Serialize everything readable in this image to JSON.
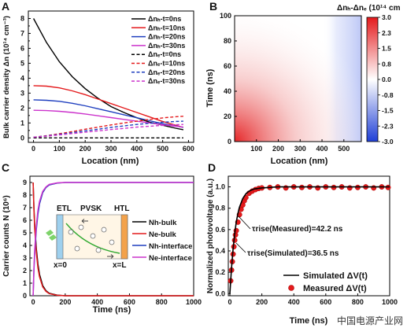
{
  "watermark": "中国电源产业网",
  "panels": {
    "A": {
      "letter": "A",
      "ylabel": "Bulk carrier density Δn (10¹⁴ cm⁻³)",
      "xlabel": "Location (nm)",
      "xticks": [
        0,
        100,
        200,
        300,
        400,
        500,
        600
      ],
      "yticks": [
        0,
        0.5,
        1,
        1.5,
        2,
        2.5,
        3,
        3.5,
        4,
        4.5,
        5,
        5.5,
        6,
        6.5,
        7,
        7.5,
        8
      ],
      "legend": [
        "Δnₕ-t=0ns",
        "Δnₕ-t=10ns",
        "Δnₕ-t=20ns",
        "Δnₕ-t=30ns",
        "Δnₑ-t=0ns",
        "Δnₑ-t=10ns",
        "Δnₑ-t=20ns",
        "Δnₑ-t=30ns"
      ]
    },
    "B": {
      "letter": "B",
      "ylabel": "Time (ns)",
      "xlabel": "Location (nm)",
      "xticks": [
        100,
        200,
        300,
        400,
        500
      ],
      "yticks": [
        0,
        20,
        40,
        60,
        80,
        100
      ],
      "colorbar_title": "Δnₕ-Δnₑ (10¹⁴ cm",
      "colorbar_ticks": [
        "3.0",
        "2.3",
        "1.5",
        "0.8",
        "0.0",
        "-0.8",
        "-1.5",
        "-2.3",
        "-3.0"
      ]
    },
    "C": {
      "letter": "C",
      "ylabel": "Carrier counts N (10⁶)",
      "xlabel": "Time (ns)",
      "xticks": [
        0,
        200,
        400,
        600,
        800,
        1000
      ],
      "yticks": [
        0,
        1,
        2,
        3,
        4,
        5,
        6,
        7,
        8,
        9
      ],
      "legend": [
        "Nh-bulk",
        "Ne-bulk",
        "Nh-interface",
        "Ne-interface"
      ],
      "inset": {
        "etl": "ETL",
        "pvsk": "PVSK",
        "htl": "HTL",
        "x0": "x=0",
        "xl": "x=L"
      }
    },
    "D": {
      "letter": "D",
      "ylabel": "Normalized photovoltage (a.u.)",
      "xlabel": "Time (ns)",
      "xticks": [
        0,
        200,
        400,
        600,
        800,
        1000
      ],
      "yticks": [
        "0.0",
        "0.2",
        "0.4",
        "0.6",
        "0.8",
        "1.0"
      ],
      "annotation_measured": "τrise(Measured)=42.2 ns",
      "annotation_simulated": "τrise(Simulated)=36.5 ns",
      "legend": [
        "Simulated ΔV(t)",
        "Measured ΔV(t)"
      ]
    }
  },
  "chart_data": [
    {
      "panel": "A",
      "type": "line",
      "xlabel": "Location (nm)",
      "ylabel": "Bulk carrier density Δn (10¹⁴ cm⁻³)",
      "xlim": [
        0,
        600
      ],
      "ylim": [
        0,
        8.5
      ],
      "x": [
        0,
        50,
        100,
        150,
        200,
        250,
        300,
        350,
        400,
        450,
        500,
        550,
        580
      ],
      "series": [
        {
          "name": "Δnₕ-t=0ns",
          "color": "#000000",
          "dash": false,
          "values": [
            8.0,
            6.4,
            5.1,
            4.1,
            3.3,
            2.65,
            2.1,
            1.7,
            1.35,
            1.05,
            0.85,
            0.65,
            0.55
          ]
        },
        {
          "name": "Δnₕ-t=10ns",
          "color": "#e41a1c",
          "dash": false,
          "values": [
            3.5,
            3.47,
            3.35,
            3.15,
            2.9,
            2.6,
            2.3,
            2.0,
            1.7,
            1.4,
            1.1,
            0.85,
            0.7
          ]
        },
        {
          "name": "Δnₕ-t=20ns",
          "color": "#1f3fbf",
          "dash": false,
          "values": [
            2.55,
            2.52,
            2.45,
            2.32,
            2.15,
            1.95,
            1.75,
            1.55,
            1.35,
            1.15,
            0.95,
            0.8,
            0.7
          ]
        },
        {
          "name": "Δnₕ-t=30ns",
          "color": "#cc33cc",
          "dash": false,
          "values": [
            1.85,
            1.83,
            1.78,
            1.7,
            1.6,
            1.48,
            1.36,
            1.24,
            1.12,
            1.0,
            0.88,
            0.78,
            0.72
          ]
        },
        {
          "name": "Δnₑ-t=0ns",
          "color": "#000000",
          "dash": true,
          "values": [
            0.0,
            0.0,
            0.0,
            0.0,
            0.0,
            0.0,
            0.0,
            0.0,
            0.0,
            0.0,
            0.0,
            0.0,
            0.0
          ]
        },
        {
          "name": "Δnₑ-t=10ns",
          "color": "#e41a1c",
          "dash": true,
          "values": [
            0.05,
            0.15,
            0.28,
            0.42,
            0.58,
            0.72,
            0.87,
            1.0,
            1.12,
            1.24,
            1.34,
            1.42,
            1.45
          ]
        },
        {
          "name": "Δnₑ-t=20ns",
          "color": "#1f3fbf",
          "dash": true,
          "values": [
            0.05,
            0.13,
            0.24,
            0.35,
            0.47,
            0.58,
            0.7,
            0.8,
            0.9,
            0.98,
            1.05,
            1.1,
            1.12
          ]
        },
        {
          "name": "Δnₑ-t=30ns",
          "color": "#cc33cc",
          "dash": true,
          "values": [
            0.05,
            0.11,
            0.2,
            0.29,
            0.38,
            0.47,
            0.56,
            0.64,
            0.72,
            0.78,
            0.84,
            0.88,
            0.9
          ]
        }
      ]
    },
    {
      "panel": "B",
      "type": "heatmap",
      "xlabel": "Location (nm)",
      "ylabel": "Time (ns)",
      "xlim": [
        0,
        580
      ],
      "ylim": [
        0,
        100
      ],
      "colorbar_range": [
        -3.0,
        3.0
      ],
      "x": [
        0,
        100,
        200,
        300,
        400,
        500,
        580
      ],
      "y": [
        0,
        10,
        20,
        40,
        60,
        80,
        100
      ],
      "values": [
        [
          3.0,
          2.4,
          1.6,
          0.9,
          0.4,
          -0.2,
          -0.6
        ],
        [
          2.0,
          1.7,
          1.2,
          0.7,
          0.3,
          -0.2,
          -0.5
        ],
        [
          1.5,
          1.3,
          0.95,
          0.55,
          0.2,
          -0.2,
          -0.45
        ],
        [
          1.0,
          0.85,
          0.6,
          0.35,
          0.1,
          -0.2,
          -0.4
        ],
        [
          0.75,
          0.62,
          0.45,
          0.25,
          0.05,
          -0.2,
          -0.35
        ],
        [
          0.55,
          0.45,
          0.33,
          0.18,
          0.03,
          -0.18,
          -0.3
        ],
        [
          0.45,
          0.36,
          0.25,
          0.13,
          0.0,
          -0.16,
          -0.28
        ]
      ]
    },
    {
      "panel": "C",
      "type": "line",
      "xlabel": "Time (ns)",
      "ylabel": "Carrier counts N (10⁶)",
      "xlim": [
        -20,
        1000
      ],
      "ylim": [
        0,
        9.5
      ],
      "x": [
        0,
        5,
        10,
        20,
        30,
        40,
        60,
        80,
        100,
        150,
        200,
        300,
        400,
        600,
        800,
        1000
      ],
      "series": [
        {
          "name": "Nh-bulk",
          "color": "#000000",
          "values": [
            9.0,
            7.0,
            5.6,
            3.7,
            2.5,
            1.7,
            0.8,
            0.4,
            0.2,
            0.05,
            0.0,
            0.0,
            0.0,
            0.0,
            0.0,
            0.0
          ]
        },
        {
          "name": "Ne-bulk",
          "color": "#e41a1c",
          "values": [
            9.0,
            6.8,
            5.3,
            3.4,
            2.2,
            1.5,
            0.7,
            0.35,
            0.17,
            0.04,
            0.0,
            0.0,
            0.0,
            0.0,
            0.0,
            0.0
          ]
        },
        {
          "name": "Nh-interface",
          "color": "#1f3fbf",
          "values": [
            0.0,
            2.0,
            3.4,
            5.3,
            6.5,
            7.3,
            8.2,
            8.6,
            8.8,
            8.95,
            9.0,
            9.0,
            9.0,
            9.0,
            9.0,
            9.0
          ]
        },
        {
          "name": "Ne-interface",
          "color": "#cc33cc",
          "values": [
            0.0,
            2.2,
            3.7,
            5.6,
            6.8,
            7.5,
            8.3,
            8.65,
            8.85,
            8.97,
            9.0,
            9.0,
            9.0,
            9.0,
            9.0,
            9.0
          ]
        }
      ]
    },
    {
      "panel": "D",
      "type": "line",
      "xlabel": "Time (ns)",
      "ylabel": "Normalized photovoltage (a.u.)",
      "xlim": [
        0,
        1000
      ],
      "ylim": [
        0,
        1.1
      ],
      "simulated": {
        "name": "Simulated ΔV(t)",
        "color": "#000000",
        "x": [
          0,
          10,
          20,
          30,
          40,
          50,
          60,
          80,
          100,
          120,
          150,
          200,
          300,
          500,
          800,
          1000
        ],
        "values": [
          0.0,
          0.24,
          0.42,
          0.56,
          0.67,
          0.75,
          0.81,
          0.89,
          0.935,
          0.96,
          0.98,
          0.99,
          1.0,
          1.0,
          1.0,
          1.0
        ]
      },
      "measured": {
        "name": "Measured ΔV(t)",
        "color": "#e41a1c",
        "x": [
          5,
          10,
          15,
          20,
          25,
          30,
          35,
          40,
          50,
          60,
          70,
          80,
          90,
          100,
          120,
          140,
          160,
          180,
          200,
          250,
          300,
          350,
          400,
          450,
          500,
          550,
          600,
          650,
          700,
          750,
          800,
          850,
          900,
          950,
          990
        ],
        "values": [
          0.12,
          0.22,
          0.3,
          0.37,
          0.44,
          0.5,
          0.55,
          0.59,
          0.67,
          0.74,
          0.79,
          0.83,
          0.87,
          0.9,
          0.94,
          0.96,
          0.975,
          0.985,
          0.99,
          0.995,
          1.0,
          0.99,
          1.0,
          0.995,
          1.0,
          0.99,
          1.0,
          0.995,
          1.0,
          0.99,
          0.995,
          1.0,
          0.99,
          1.0,
          0.995
        ]
      }
    }
  ]
}
